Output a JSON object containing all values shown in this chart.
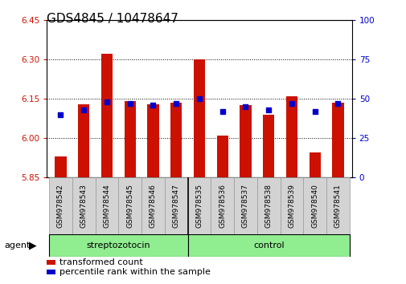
{
  "title": "GDS4845 / 10478647",
  "samples": [
    "GSM978542",
    "GSM978543",
    "GSM978544",
    "GSM978545",
    "GSM978546",
    "GSM978547",
    "GSM978535",
    "GSM978536",
    "GSM978537",
    "GSM978538",
    "GSM978539",
    "GSM978540",
    "GSM978541"
  ],
  "red_values": [
    5.93,
    6.13,
    6.32,
    6.14,
    6.13,
    6.135,
    6.3,
    6.01,
    6.125,
    6.09,
    6.16,
    5.945,
    6.135
  ],
  "blue_percentile": [
    40,
    43,
    48,
    47,
    46,
    47,
    50,
    42,
    45,
    43,
    47,
    42,
    47
  ],
  "ylim_left": [
    5.85,
    6.45
  ],
  "ylim_right": [
    0,
    100
  ],
  "yticks_left": [
    5.85,
    6.0,
    6.15,
    6.3,
    6.45
  ],
  "yticks_right": [
    0,
    25,
    50,
    75,
    100
  ],
  "bar_color": "#CC1100",
  "dot_color": "#0000CC",
  "bar_width": 0.5,
  "baseline": 5.85,
  "n_strep": 6,
  "title_fontsize": 11,
  "tick_fontsize": 7.5,
  "sample_fontsize": 6.5,
  "group_fontsize": 8,
  "legend_fontsize": 8,
  "agent_label": "agent",
  "strep_label": "streptozotocin",
  "control_label": "control",
  "group_color": "#90EE90",
  "label_box_color": "#d3d3d3",
  "label_box_edge": "#999999"
}
